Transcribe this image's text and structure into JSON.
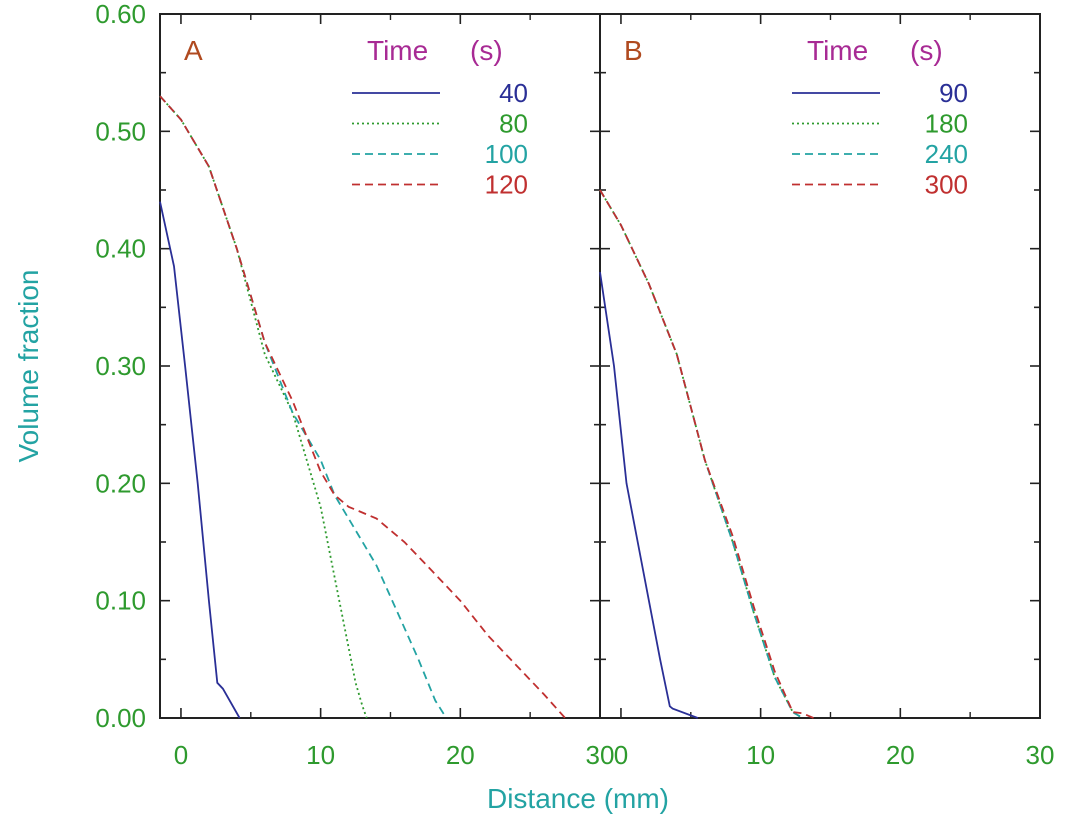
{
  "chart_data": {
    "type": "line",
    "ylabel": "Volume fraction",
    "xlabel": "Distance (mm)",
    "ylim": [
      0,
      0.6
    ],
    "yticks": [
      "0.00",
      "0.10",
      "0.20",
      "0.30",
      "0.40",
      "0.50",
      "0.60"
    ],
    "xticks": [
      "0",
      "10",
      "20",
      "30"
    ],
    "grid": false,
    "legend_placement": "top-right",
    "legend_title": "Time",
    "legend_units": "(s)",
    "panels": [
      {
        "letter": "A",
        "xlim": [
          -1.5,
          30
        ],
        "series": [
          {
            "name": "40",
            "color": "#2a2f96",
            "dash": "solid",
            "x": [
              -1.5,
              -0.5,
              0.3,
              1.2,
              2.0,
              2.6,
              3.0,
              4.2
            ],
            "y": [
              0.44,
              0.385,
              0.3,
              0.2,
              0.1,
              0.03,
              0.025,
              0.0
            ]
          },
          {
            "name": "80",
            "color": "#2e9a2e",
            "dash": "dotted",
            "x": [
              -1.5,
              0,
              2,
              4,
              6,
              8,
              10,
              11,
              12,
              12.5,
              13,
              13.3
            ],
            "y": [
              0.53,
              0.51,
              0.47,
              0.4,
              0.31,
              0.26,
              0.18,
              0.12,
              0.06,
              0.03,
              0.01,
              0.0
            ]
          },
          {
            "name": "100",
            "color": "#23a3a3",
            "dash": "dashed",
            "x": [
              -1.5,
              0,
              2,
              4,
              6,
              8,
              10,
              11,
              12.5,
              14,
              15.5,
              17,
              18.2,
              19
            ],
            "y": [
              0.53,
              0.51,
              0.47,
              0.4,
              0.32,
              0.26,
              0.22,
              0.19,
              0.16,
              0.13,
              0.09,
              0.05,
              0.015,
              0.0
            ]
          },
          {
            "name": "120",
            "color": "#c03030",
            "dash": "dashed",
            "x": [
              -1.5,
              0,
              2,
              4,
              6,
              8,
              10,
              11,
              12,
              14,
              16,
              18,
              20,
              22,
              24,
              26,
              27.5
            ],
            "y": [
              0.53,
              0.51,
              0.47,
              0.4,
              0.32,
              0.27,
              0.21,
              0.19,
              0.18,
              0.17,
              0.15,
              0.125,
              0.1,
              0.07,
              0.045,
              0.02,
              0.0
            ]
          }
        ]
      },
      {
        "letter": "B",
        "xlim": [
          -1.5,
          30
        ],
        "series": [
          {
            "name": "90",
            "color": "#2a2f96",
            "dash": "solid",
            "x": [
              -1.5,
              -0.5,
              0.4,
              1.2,
              2.0,
              2.8,
              3.5,
              3.7,
              5.5
            ],
            "y": [
              0.38,
              0.3,
              0.2,
              0.15,
              0.1,
              0.05,
              0.01,
              0.008,
              0.0
            ]
          },
          {
            "name": "180",
            "color": "#2e9a2e",
            "dash": "dotted",
            "x": [
              -1.5,
              0,
              2,
              4,
              6,
              8,
              9.5,
              11,
              12.3,
              13
            ],
            "y": [
              0.45,
              0.42,
              0.37,
              0.31,
              0.22,
              0.15,
              0.09,
              0.035,
              0.005,
              0.0
            ]
          },
          {
            "name": "240",
            "color": "#23a3a3",
            "dash": "dashed",
            "x": [
              -1.5,
              0,
              2,
              4,
              6,
              8,
              9.5,
              11,
              12.3,
              13
            ],
            "y": [
              0.45,
              0.42,
              0.37,
              0.31,
              0.22,
              0.15,
              0.09,
              0.035,
              0.005,
              0.0
            ]
          },
          {
            "name": "300",
            "color": "#c03030",
            "dash": "dashed",
            "x": [
              -1.5,
              0,
              2,
              4,
              6,
              8,
              9.5,
              11,
              12.3,
              13,
              13.8
            ],
            "y": [
              0.45,
              0.42,
              0.37,
              0.31,
              0.22,
              0.155,
              0.095,
              0.04,
              0.005,
              0.004,
              0.0
            ]
          }
        ]
      }
    ]
  }
}
